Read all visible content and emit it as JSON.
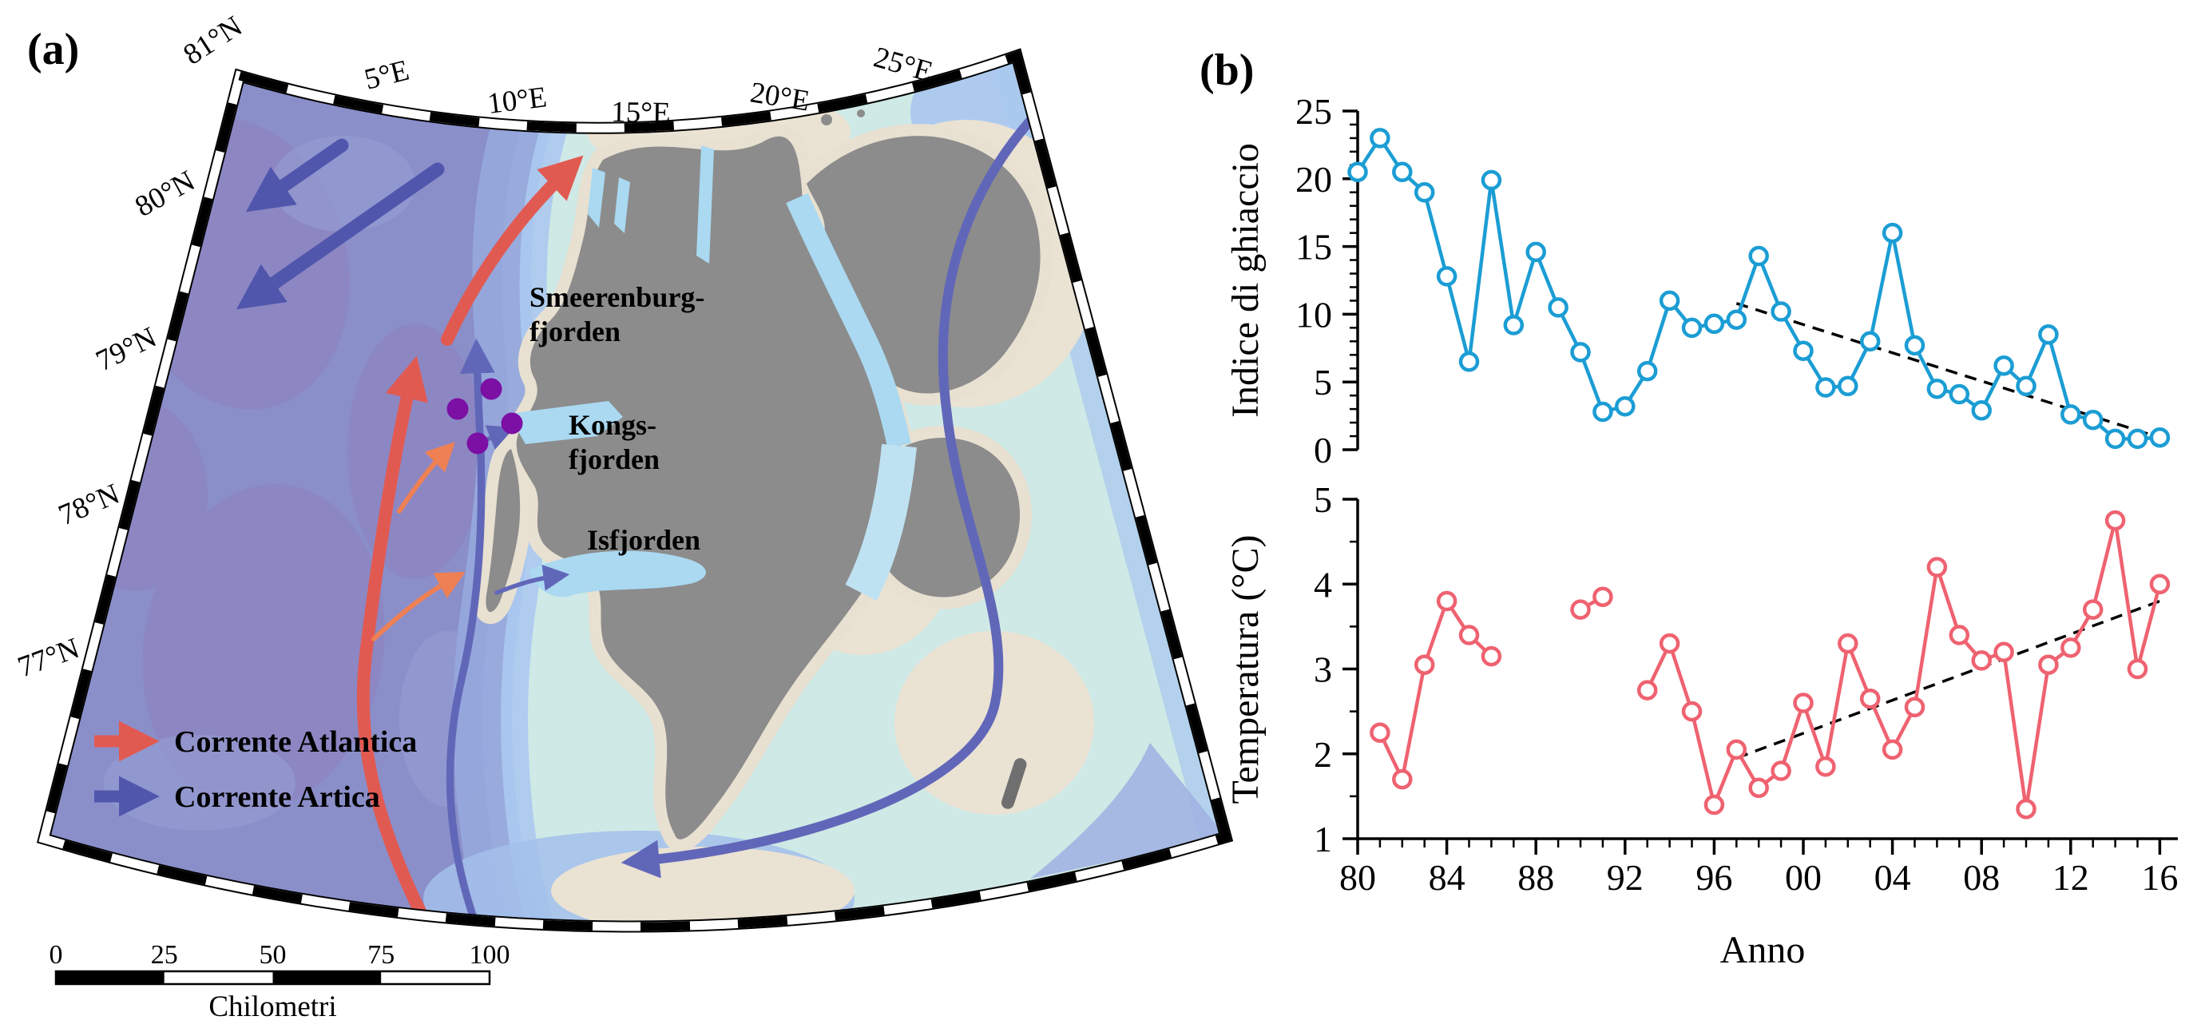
{
  "panels": {
    "a_label": "(a)",
    "b_label": "(b)"
  },
  "map": {
    "latitude_labels": [
      "81°N",
      "80°N",
      "79°N",
      "78°N",
      "77°N"
    ],
    "longitude_labels": [
      "5°E",
      "10°E",
      "15°E",
      "20°E",
      "25°E"
    ],
    "places": {
      "smeerenburg_line1": "Smeerenburg-",
      "smeerenburg_line2": "fjorden",
      "kongs_line1": "Kongs-",
      "kongs_line2": "fjorden",
      "isfjorden": "Isfjorden"
    },
    "legend": {
      "atlantic": {
        "label": "Corrente Atlantica",
        "color": "#e15a52"
      },
      "arctic": {
        "label": "Corrente Artica",
        "color": "#5156ad"
      }
    },
    "scale_bar": {
      "tick_labels": [
        "0",
        "25",
        "50",
        "75",
        "100"
      ],
      "unit": "Chilometri"
    },
    "station_markers": {
      "color": "#7c0fa4",
      "count": 4
    },
    "colors": {
      "deep_ocean": "#8a8fc9",
      "deep_patch": "#8d84c0",
      "mid_shelf": "#96a8dc",
      "light_shelf": "#abc9ef",
      "pale_shelf": "#cfe9e6",
      "shallow_beige": "#eae2d3",
      "fjord_water": "#aad9f1",
      "land": "#8c8c8c"
    }
  },
  "chart_data": [
    {
      "type": "line",
      "title": "",
      "xlabel": "",
      "ylabel": "Indice di ghiaccio",
      "ylim": [
        0,
        25
      ],
      "yticks": [
        0,
        5,
        10,
        15,
        20,
        25
      ],
      "grid": false,
      "legend_position": "none",
      "series": [
        {
          "name": "Indice di ghiaccio",
          "color": "#1b9dd4",
          "marker": "open-circle",
          "x": [
            1980,
            1981,
            1982,
            1983,
            1984,
            1985,
            1986,
            1987,
            1988,
            1989,
            1990,
            1991,
            1992,
            1993,
            1994,
            1995,
            1996,
            1997,
            1998,
            1999,
            2000,
            2001,
            2002,
            2003,
            2004,
            2005,
            2006,
            2007,
            2008,
            2009,
            2010,
            2011,
            2012,
            2013,
            2014,
            2015,
            2016
          ],
          "y": [
            20.5,
            23,
            20.5,
            19,
            12.8,
            6.5,
            19.9,
            9.2,
            14.6,
            10.5,
            7.2,
            2.8,
            3.2,
            5.8,
            11,
            9,
            9.3,
            9.6,
            14.3,
            10.2,
            7.3,
            4.6,
            4.7,
            8,
            16,
            7.7,
            4.5,
            4.1,
            2.9,
            6.2,
            4.7,
            8.5,
            2.6,
            2.2,
            0.8,
            0.8,
            0.9
          ]
        }
      ],
      "trend": {
        "style": "dashed",
        "color": "#000000",
        "x": [
          1997,
          2016
        ],
        "y": [
          10.8,
          0.9
        ]
      }
    },
    {
      "type": "line",
      "title": "",
      "xlabel": "Anno",
      "ylabel": "Temperatura (°C)",
      "ylim": [
        1,
        5
      ],
      "yticks": [
        1,
        2,
        3,
        4,
        5
      ],
      "xticks": [
        1980,
        1984,
        1988,
        1992,
        1996,
        2000,
        2004,
        2008,
        2012,
        2016
      ],
      "xtick_labels": [
        "80",
        "84",
        "88",
        "92",
        "96",
        "00",
        "04",
        "08",
        "12",
        "16"
      ],
      "grid": false,
      "legend_position": "none",
      "series": [
        {
          "name": "Temperatura",
          "color": "#ef6270",
          "marker": "open-circle",
          "x": [
            1981,
            1982,
            1983,
            1984,
            1985,
            1986,
            1987,
            1988,
            1989,
            1990,
            1991,
            1992,
            1993,
            1994,
            1995,
            1996,
            1997,
            1998,
            1999,
            2000,
            2001,
            2002,
            2003,
            2004,
            2005,
            2006,
            2007,
            2008,
            2009,
            2010,
            2011,
            2012,
            2013,
            2014,
            2015,
            2016
          ],
          "y": [
            2.25,
            1.7,
            3.05,
            3.8,
            3.4,
            3.15,
            null,
            null,
            null,
            3.7,
            3.85,
            null,
            2.75,
            3.3,
            2.5,
            1.4,
            2.05,
            1.6,
            1.8,
            2.6,
            1.85,
            3.3,
            2.65,
            2.05,
            2.55,
            4.2,
            3.4,
            3.1,
            3.2,
            1.35,
            3.05,
            3.25,
            3.7,
            4.75,
            3.0,
            4.0
          ]
        }
      ],
      "trend": {
        "style": "dashed",
        "color": "#000000",
        "x": [
          1997,
          2016
        ],
        "y": [
          1.95,
          3.8
        ]
      }
    }
  ]
}
